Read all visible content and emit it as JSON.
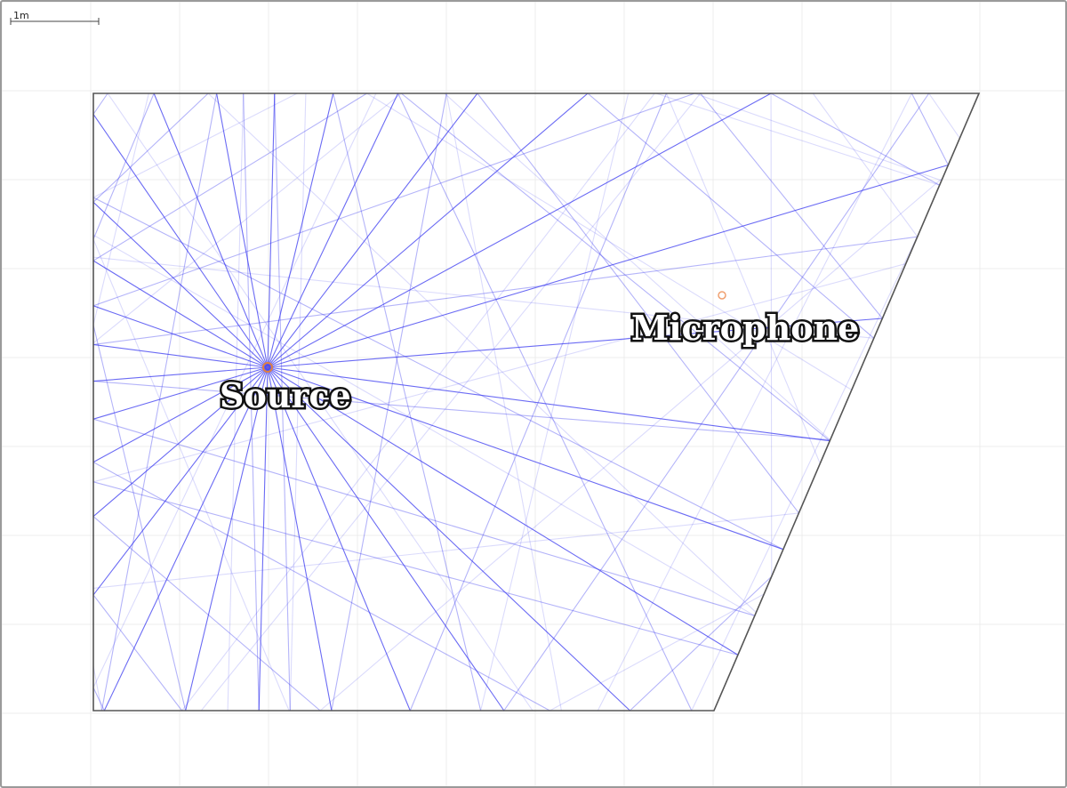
{
  "scale_bar": {
    "label": "1m"
  },
  "nodes": {
    "source": {
      "label": "Source"
    },
    "microphone": {
      "label": "Microphone"
    }
  },
  "colors": {
    "ray": "#3a3af0",
    "room_wall": "#555555",
    "grid": "#ececec",
    "source_marker": "#e08040",
    "microphone_marker": "#f0a070"
  }
}
